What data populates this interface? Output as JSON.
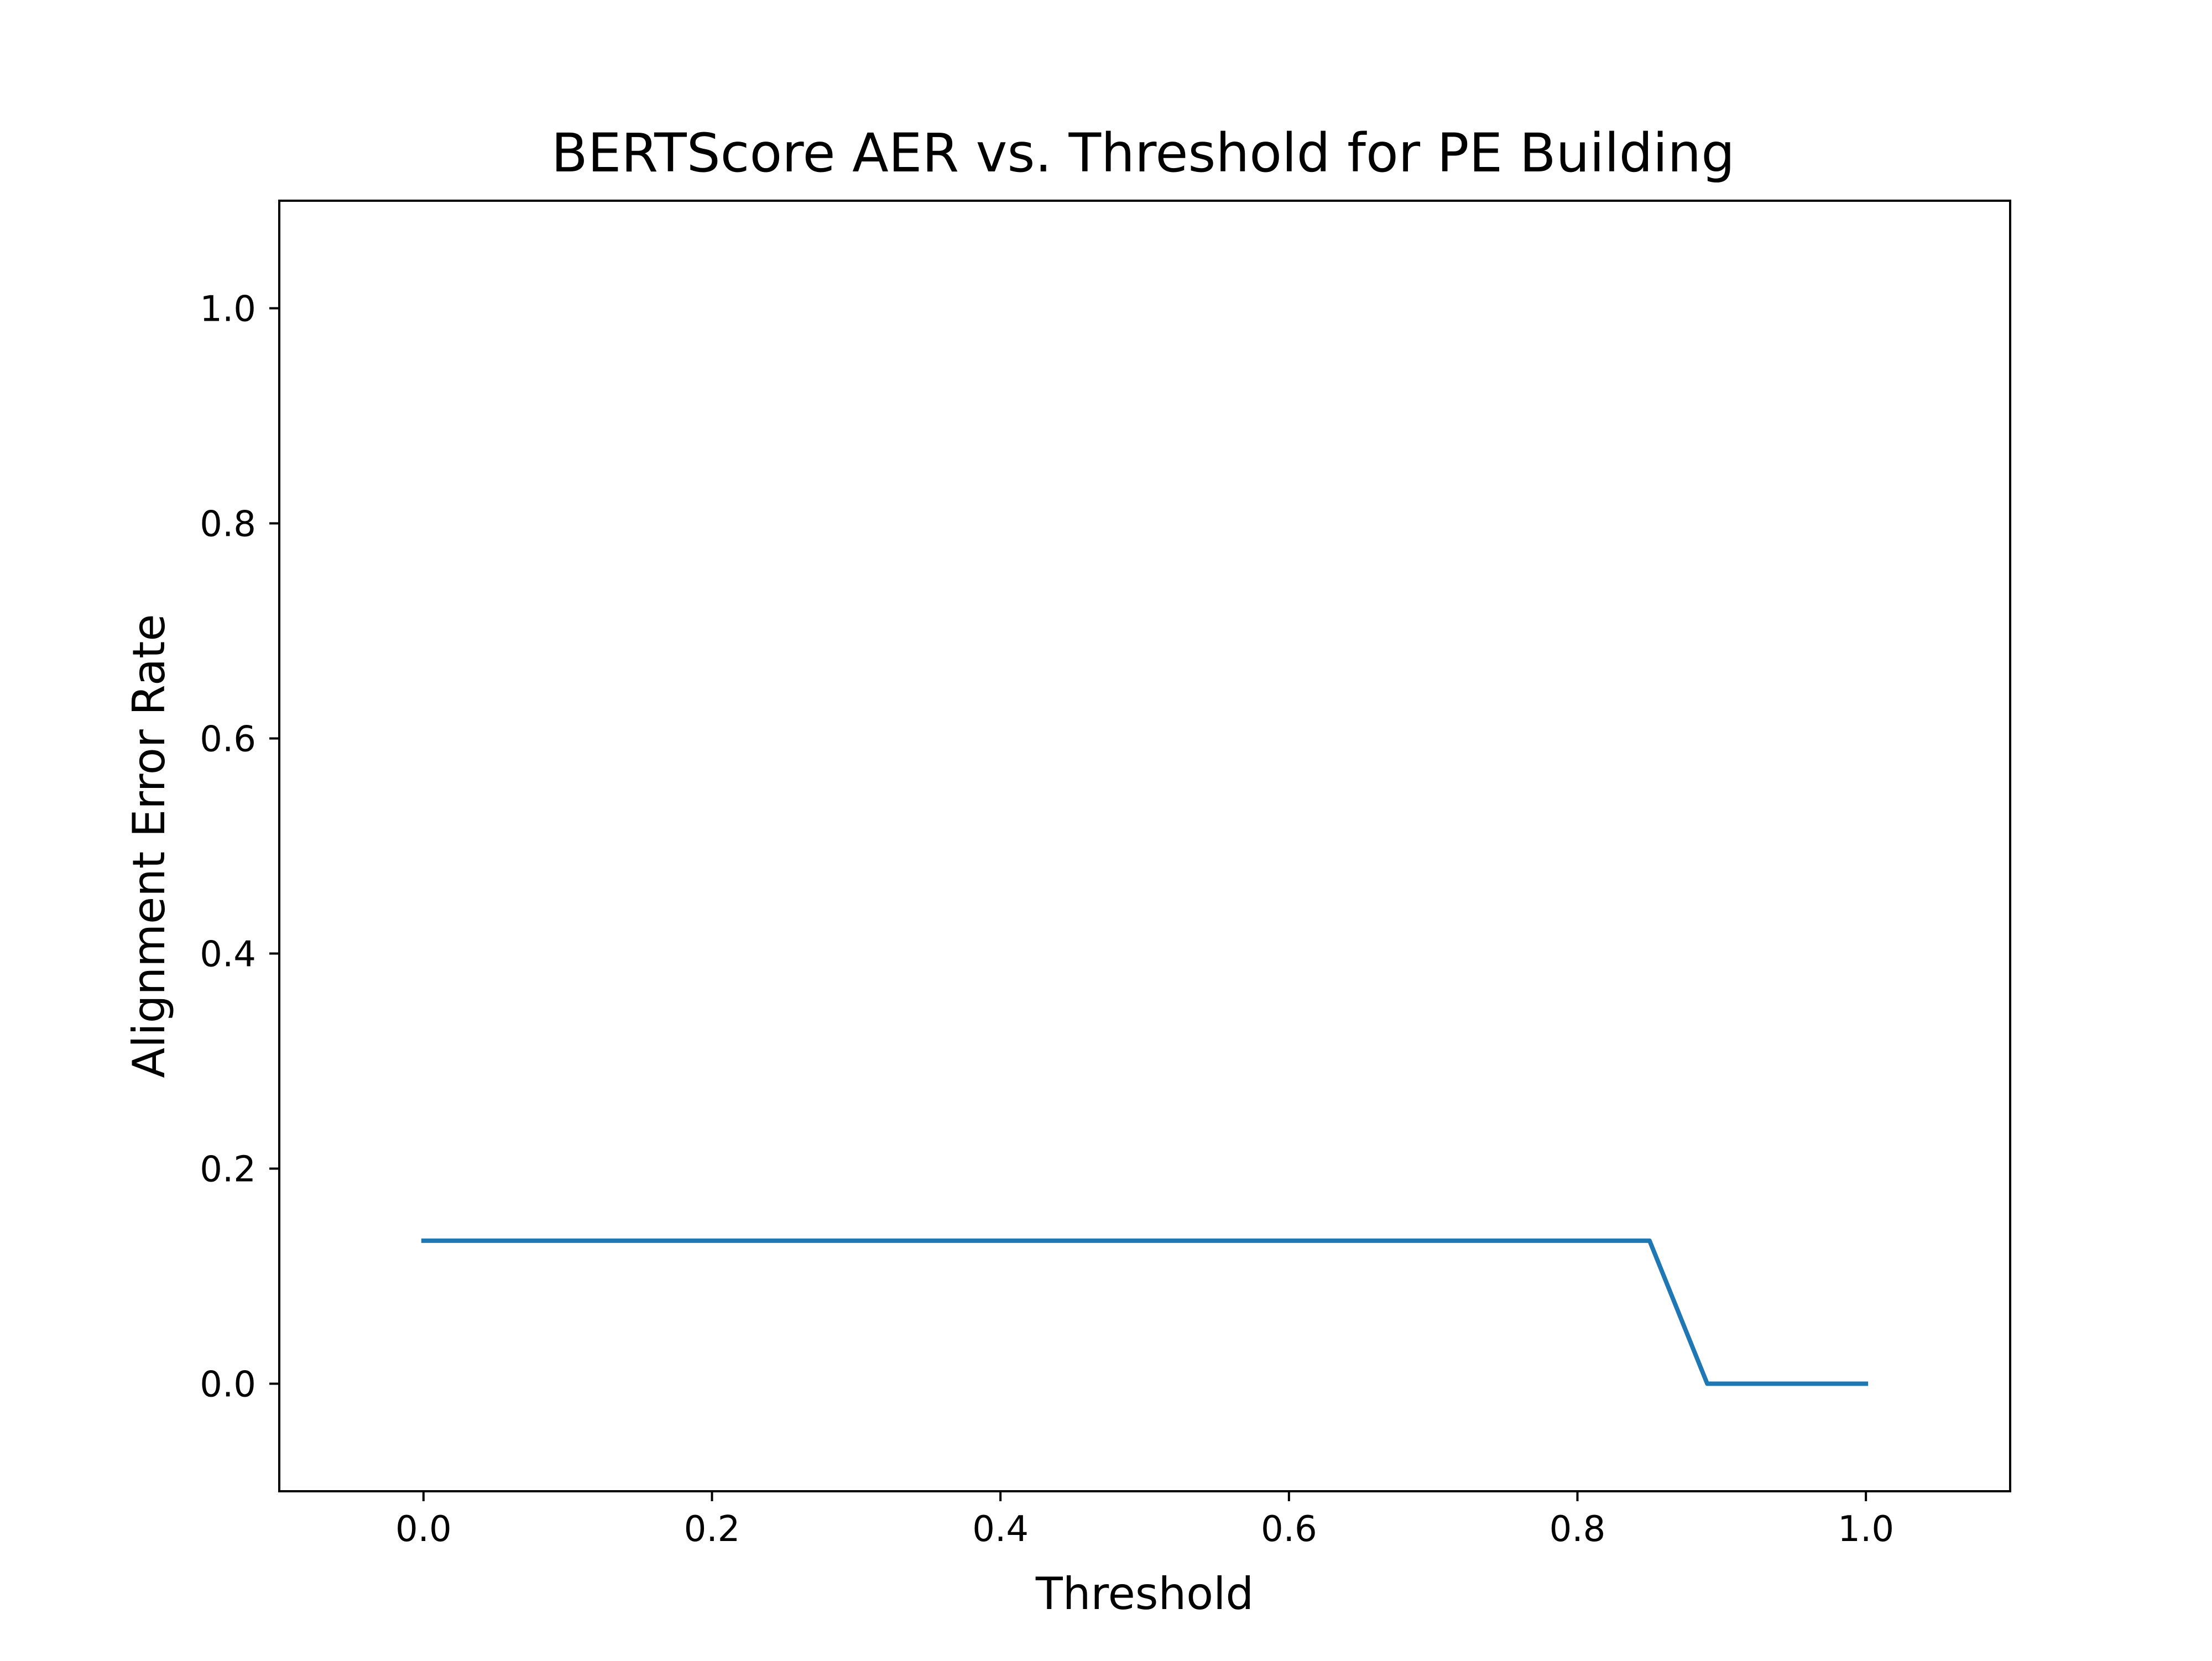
{
  "chart_data": {
    "type": "line",
    "title": "BERTScore AER vs. Threshold for PE Building",
    "xlabel": "Threshold",
    "ylabel": "Alignment Error Rate",
    "xlim": [
      -0.1,
      1.1
    ],
    "ylim": [
      -0.1,
      1.1
    ],
    "xticks": [
      0.0,
      0.2,
      0.4,
      0.6,
      0.8,
      1.0
    ],
    "xtick_labels": [
      "0.0",
      "0.2",
      "0.4",
      "0.6",
      "0.8",
      "1.0"
    ],
    "yticks": [
      0.0,
      0.2,
      0.4,
      0.6,
      0.8,
      1.0
    ],
    "ytick_labels": [
      "0.0",
      "0.2",
      "0.4",
      "0.6",
      "0.8",
      "1.0"
    ],
    "grid": false,
    "series": [
      {
        "color": "#1f77b4",
        "x": [
          0.0,
          0.85,
          0.89,
          1.0
        ],
        "y": [
          0.133,
          0.133,
          0.0,
          0.0
        ]
      }
    ]
  }
}
